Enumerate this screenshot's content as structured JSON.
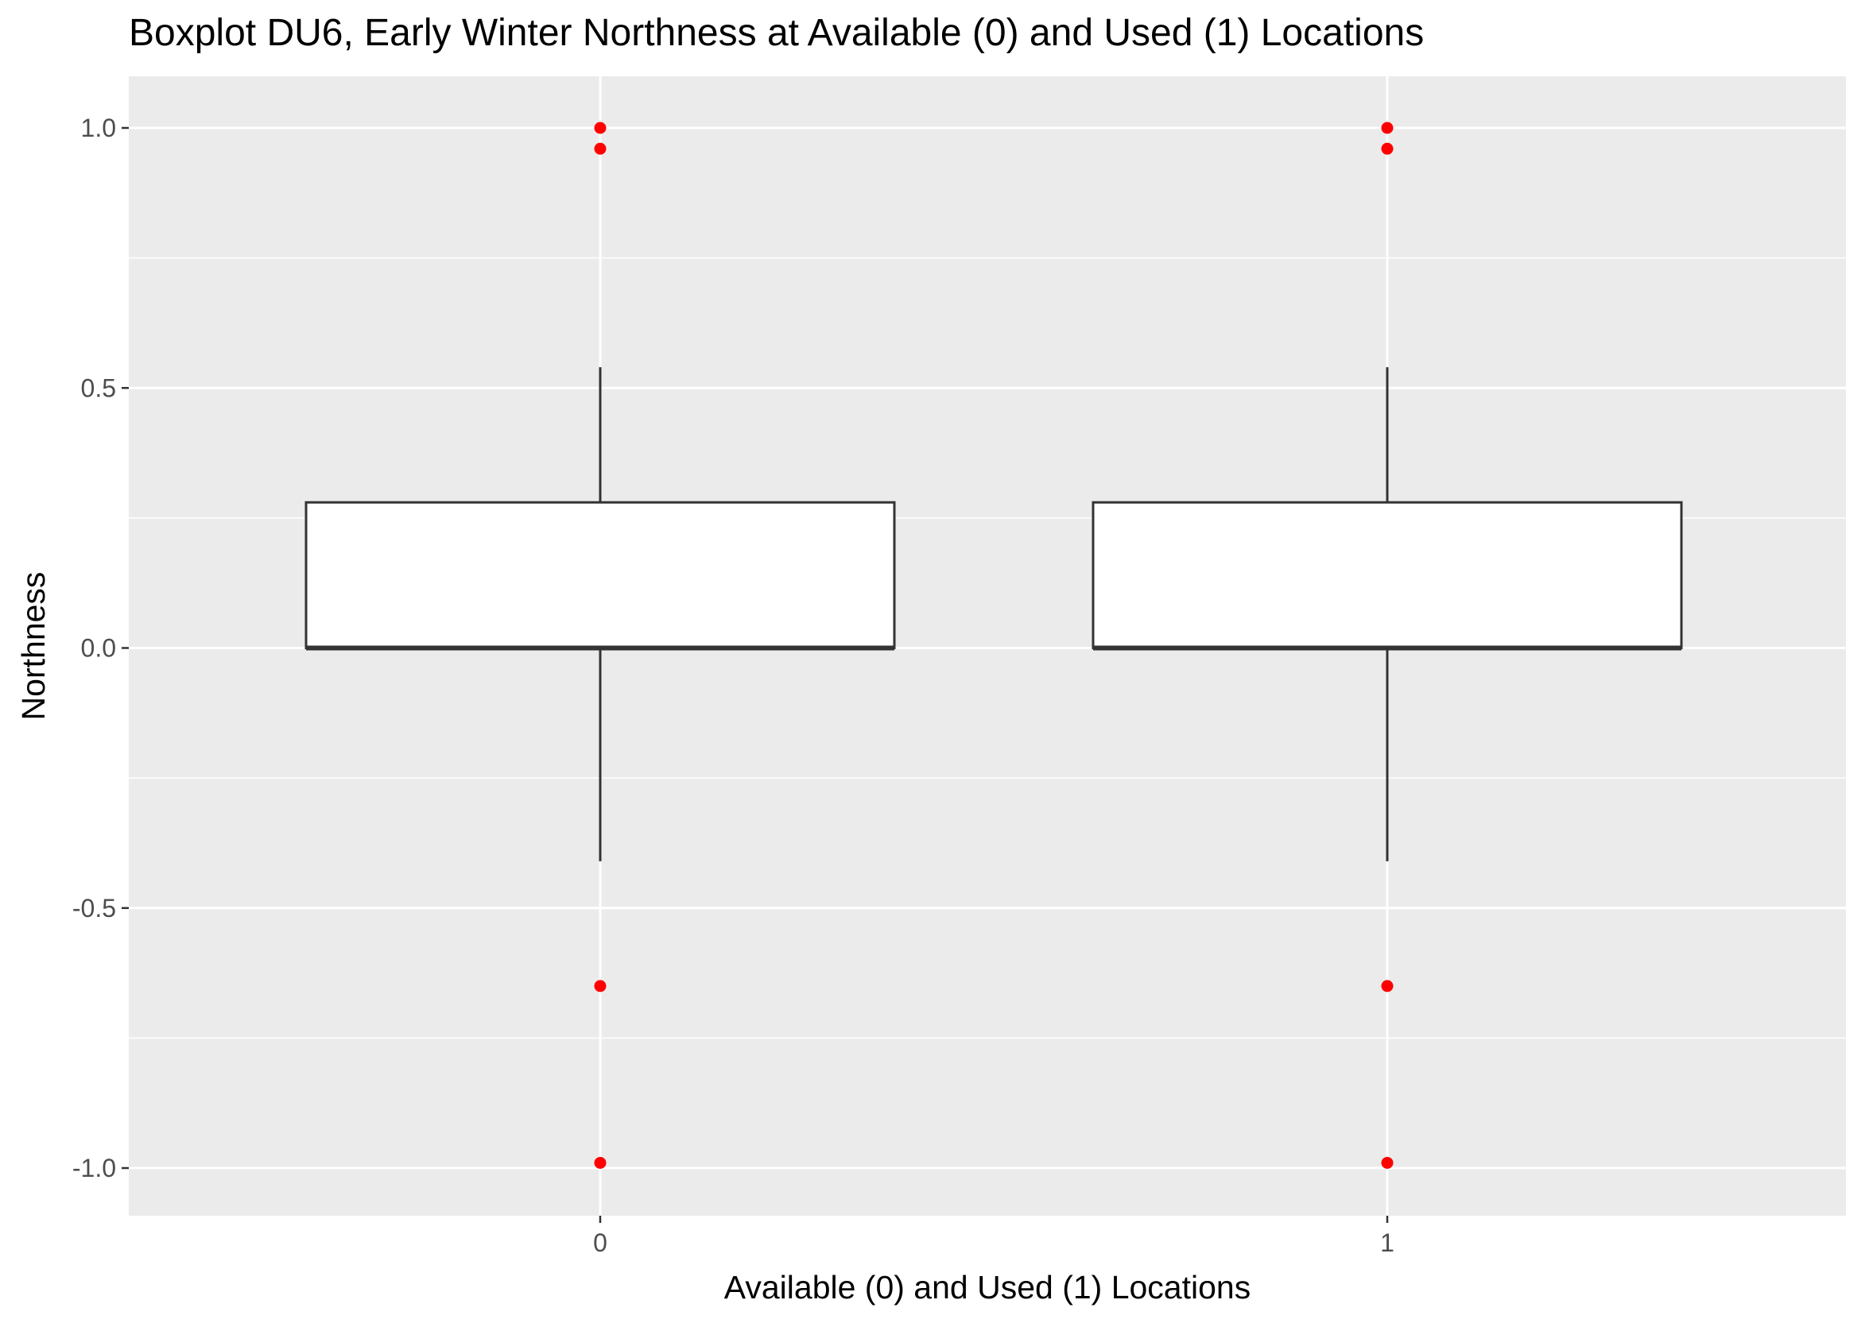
{
  "chart_data": {
    "type": "boxplot",
    "title": "Boxplot DU6, Early Winter Northness at Available (0) and Used (1) Locations",
    "xlabel": "Available (0) and Used (1) Locations",
    "ylabel": "Northness",
    "categories": [
      "0",
      "1"
    ],
    "ylim": [
      -1.1,
      1.1
    ],
    "yticks": [
      -1.0,
      -0.5,
      0.0,
      0.5,
      1.0
    ],
    "ytick_labels": [
      "-1.0",
      "-0.5",
      "0.0",
      "0.5",
      "1.0"
    ],
    "boxes": [
      {
        "category": "0",
        "whisker_low": -0.41,
        "q1": 0.0,
        "median": 0.0,
        "q3": 0.28,
        "whisker_high": 0.54,
        "outliers": [
          1.0,
          0.96,
          -0.65,
          -0.99
        ]
      },
      {
        "category": "1",
        "whisker_low": -0.41,
        "q1": 0.0,
        "median": 0.0,
        "q3": 0.28,
        "whisker_high": 0.54,
        "outliers": [
          1.0,
          0.96,
          -0.65,
          -0.99
        ]
      }
    ],
    "grid": true,
    "outlier_color": "#ff0000",
    "panel_color": "#ebebeb",
    "box_fill": "#ffffff",
    "box_line_color": "#333333"
  }
}
